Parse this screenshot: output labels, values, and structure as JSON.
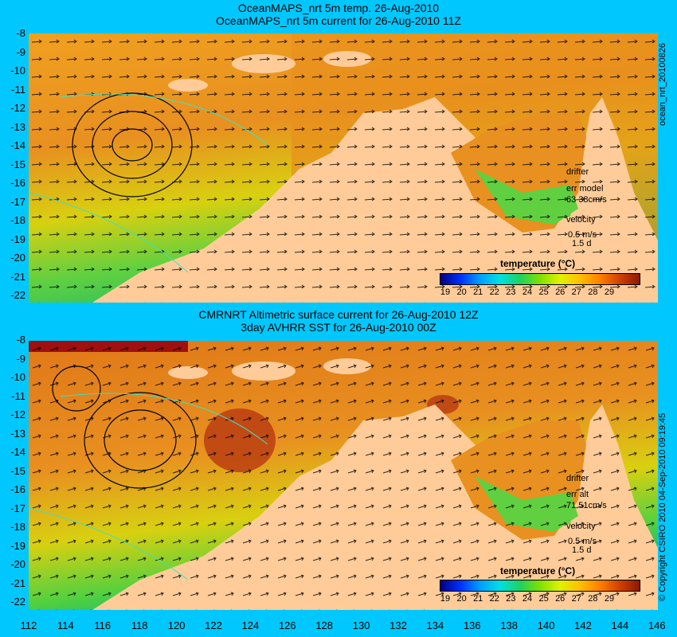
{
  "top_panel": {
    "title_line1": "OceanMAPS_nrt 5m temp. 26-Aug-2010",
    "title_line2": "OceanMAPS_nrt 5m current for 26-Aug-2010 11Z",
    "side_label": "ocean_nrt_20100826",
    "drifter_label": "drifter",
    "err_label": "err model",
    "err_value": "63 38cm/s",
    "velocity_label": "velocity",
    "velocity_scale": "0.5 m/s",
    "velocity_days": "1.5 d"
  },
  "bottom_panel": {
    "title_line1": "CMRNRT Altimetric surface current for 26-Aug-2010 12Z",
    "title_line2": "3day AVHRR SST for 26-Aug-2010 00Z",
    "side_label": "© Copyright CSIRO 2010  04-Sep-2010 09:19:45",
    "drifter_label": "drifter",
    "err_label": "err alt",
    "err_value": "71 51cm/s",
    "velocity_label": "velocity",
    "velocity_scale": "0.5 m/s",
    "velocity_days": "1.5 d"
  },
  "legend": {
    "title": "temperature (°C)",
    "ticks": [
      "19",
      "20",
      "21",
      "22",
      "23",
      "24",
      "25",
      "26",
      "27",
      "28",
      "29"
    ],
    "colors": [
      "#00007f",
      "#0030ff",
      "#00a0ff",
      "#00e0e0",
      "#20d060",
      "#80e000",
      "#e0f000",
      "#ffc000",
      "#ff8000",
      "#d04000",
      "#8a1a00"
    ]
  },
  "y_axis_labels": [
    "-8",
    "-9",
    "-10",
    "-11",
    "-12",
    "-13",
    "-14",
    "-15",
    "-16",
    "-17",
    "-18",
    "-19",
    "-20",
    "-21",
    "-22"
  ],
  "x_axis_labels": [
    "112",
    "114",
    "116",
    "118",
    "120",
    "122",
    "124",
    "126",
    "128",
    "130",
    "132",
    "134",
    "136",
    "138",
    "140",
    "142",
    "144",
    "146"
  ],
  "colors": {
    "background": "#00c8ff",
    "land": "#ffcc99",
    "warm": "#f0a020",
    "cool": "#40d040"
  }
}
